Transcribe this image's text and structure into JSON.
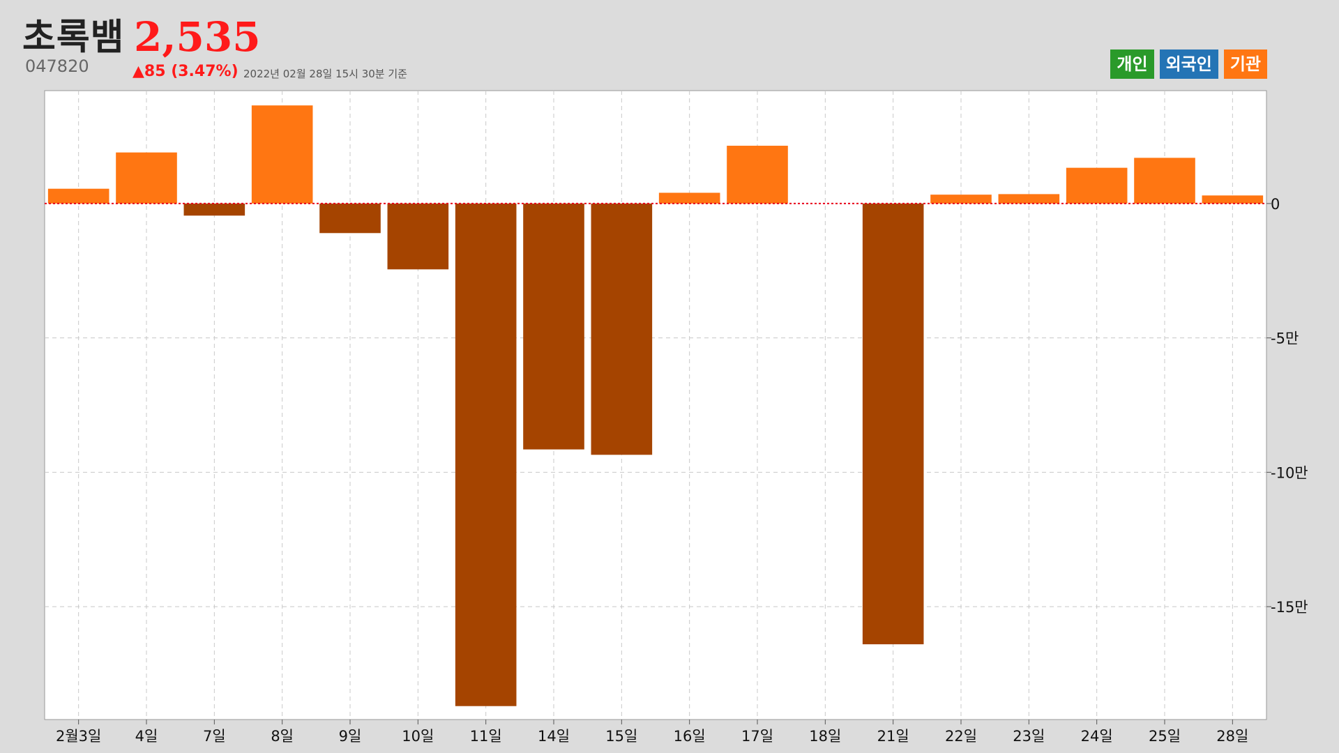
{
  "header": {
    "stock_name": "초록뱀",
    "price": "2,535",
    "code": "047820",
    "change": "▲85 (3.47%)",
    "as_of": "2022년 02월 28일 15시 30분 기준"
  },
  "legend": [
    {
      "label": "개인",
      "color": "#2a9a2a"
    },
    {
      "label": "외국인",
      "color": "#2474b5"
    },
    {
      "label": "기관",
      "color": "#ff7612"
    }
  ],
  "colors": {
    "positive": "#ff7612",
    "negative": "#a54400",
    "zero_line": "#e8001a",
    "grid": "#c8c8c8"
  },
  "chart_data": {
    "type": "bar",
    "series_name": "기관",
    "categories": [
      "2월3일",
      "4일",
      "7일",
      "8일",
      "9일",
      "10일",
      "11일",
      "14일",
      "15일",
      "16일",
      "17일",
      "18일",
      "21일",
      "22일",
      "23일",
      "24일",
      "25일",
      "28일"
    ],
    "values": [
      5500,
      19000,
      -4500,
      36500,
      -11000,
      -24500,
      -187000,
      -91500,
      -93500,
      4000,
      21500,
      0,
      -164000,
      3300,
      3500,
      13300,
      17000,
      3000
    ],
    "ylim": [
      -192000,
      42000
    ],
    "y_ticks": [
      {
        "value": 0,
        "label": "0"
      },
      {
        "value": -50000,
        "label": "-5만"
      },
      {
        "value": -100000,
        "label": "-10만"
      },
      {
        "value": -150000,
        "label": "-15만"
      }
    ],
    "grid": true,
    "xlabel": "",
    "ylabel": ""
  }
}
